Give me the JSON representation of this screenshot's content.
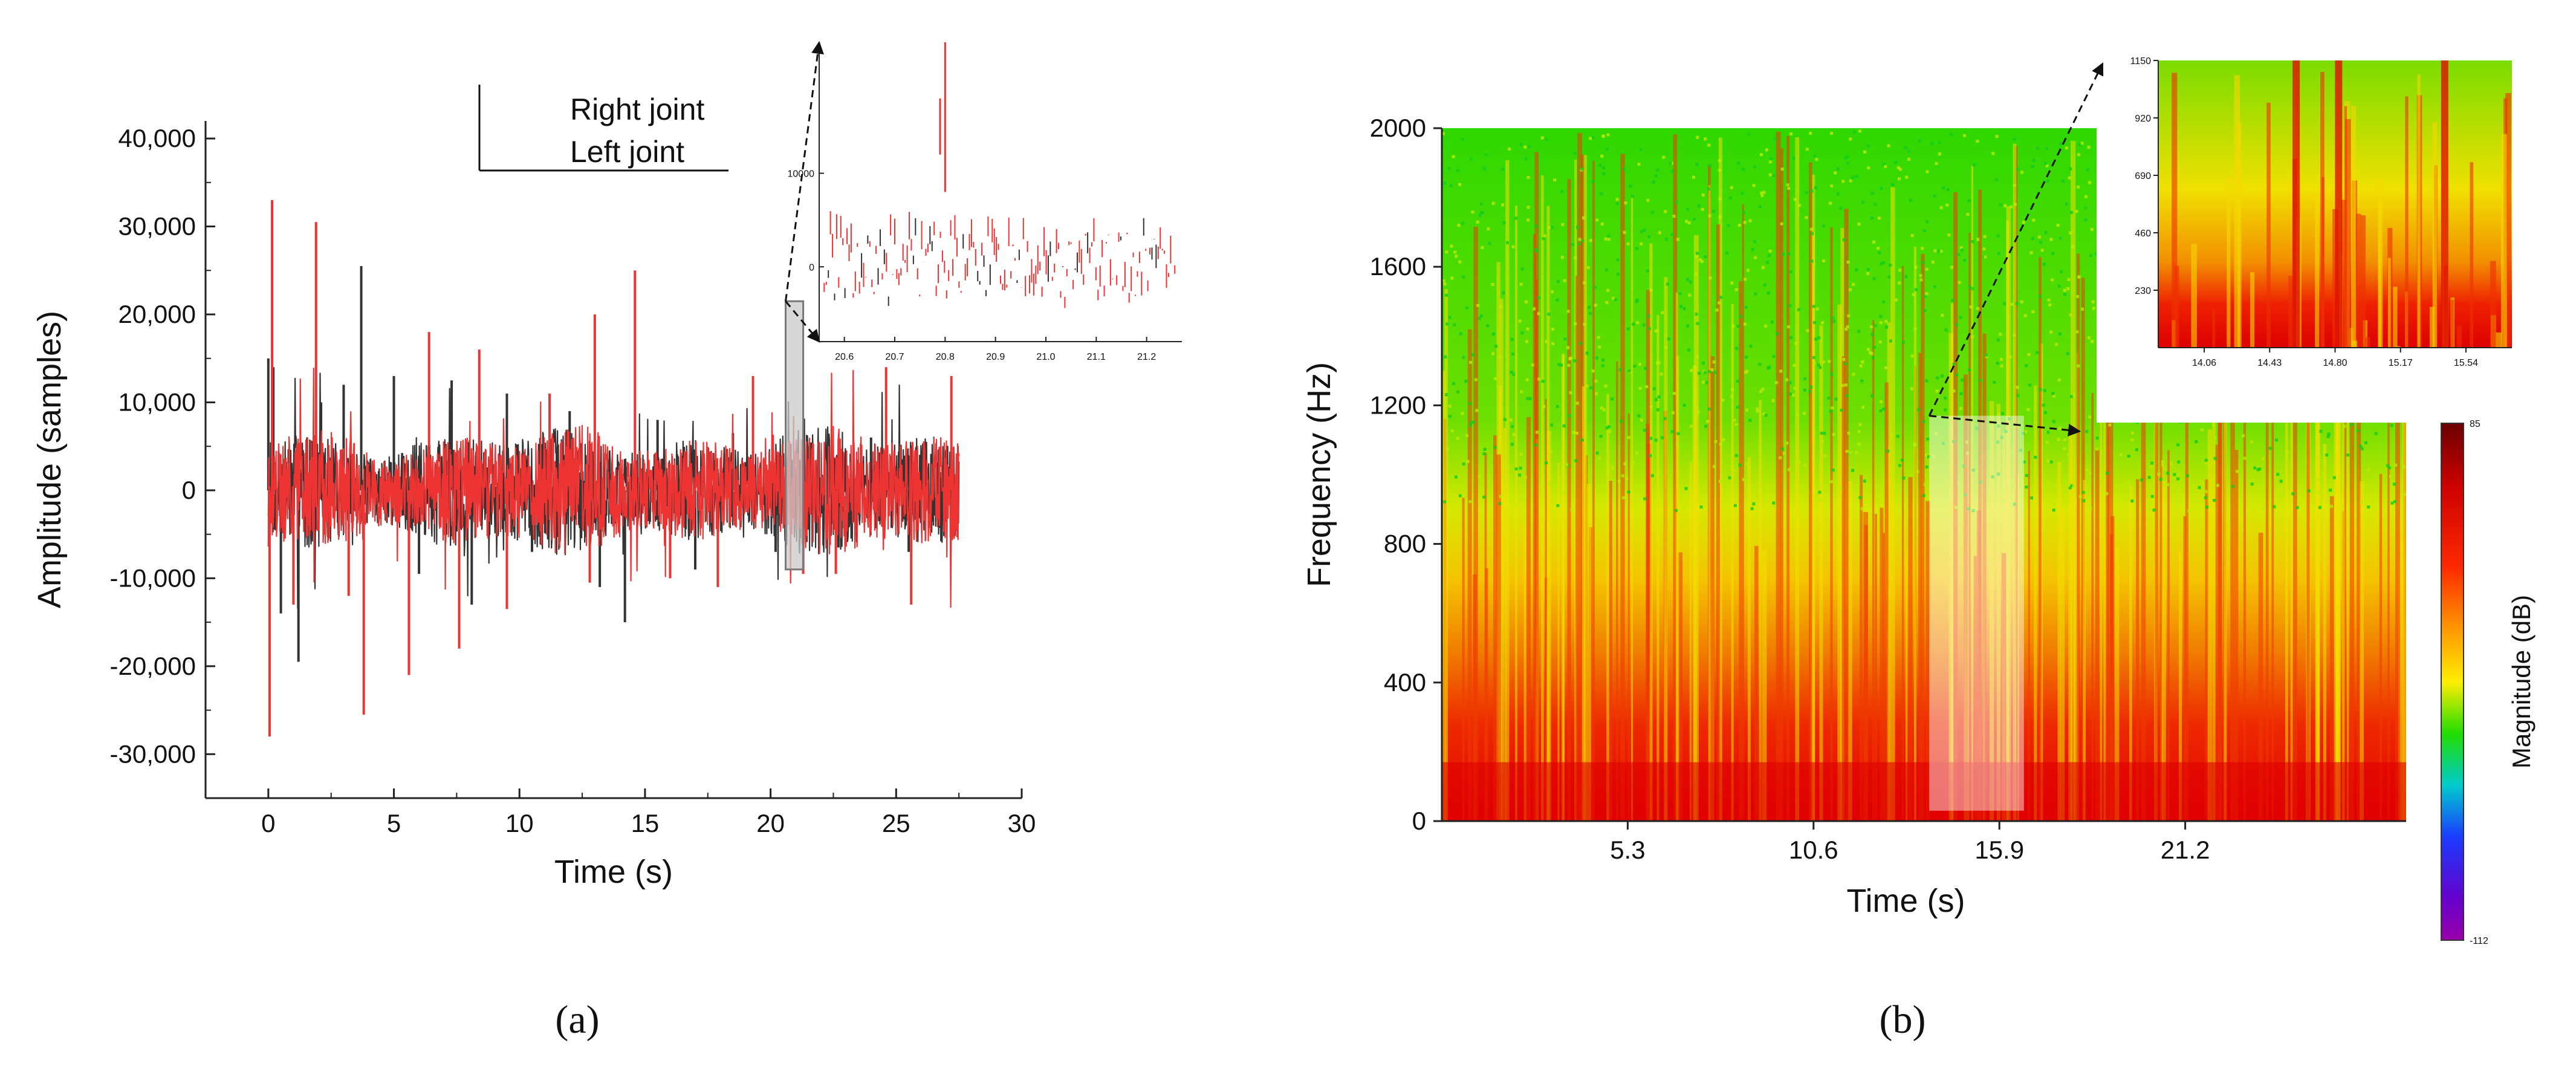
{
  "chart_data": [
    {
      "type": "line",
      "panel": "(a)",
      "xlabel": "Time (s)",
      "ylabel": "Amplitude (samples)",
      "xlim": [
        -2.5,
        30
      ],
      "ylim": [
        -35000,
        42000
      ],
      "xticks": [
        0,
        5,
        10,
        15,
        20,
        25,
        30
      ],
      "xtick_labels": [
        "0",
        "5",
        "10",
        "15",
        "20",
        "25",
        "30"
      ],
      "yticks": [
        -30000,
        -20000,
        -10000,
        0,
        10000,
        20000,
        30000,
        40000
      ],
      "ytick_labels": [
        "-30,000",
        "-20,000",
        "-10,000",
        "0",
        "10,000",
        "20,000",
        "30,000",
        "40,000"
      ],
      "grid": false,
      "legend_position": "top-center",
      "series": [
        {
          "name": "Right joint",
          "color": "#333333",
          "duration_s": 27.5,
          "points": [
            [
              0.0,
              15000
            ],
            [
              0.2,
              14000
            ],
            [
              0.5,
              -14000
            ],
            [
              1.2,
              -19500
            ],
            [
              2.1,
              10000
            ],
            [
              3.0,
              12000
            ],
            [
              3.7,
              25500
            ],
            [
              5.0,
              13000
            ],
            [
              6.0,
              -9500
            ],
            [
              7.3,
              12500
            ],
            [
              8.1,
              -13000
            ],
            [
              9.5,
              11000
            ],
            [
              10.5,
              -7000
            ],
            [
              12.0,
              9000
            ],
            [
              13.2,
              -11000
            ],
            [
              14.2,
              -15000
            ],
            [
              15.5,
              8000
            ],
            [
              17.0,
              -9000
            ],
            [
              18.5,
              6500
            ],
            [
              20.2,
              -7000
            ],
            [
              21.5,
              5000
            ],
            [
              22.7,
              -6500
            ],
            [
              24.0,
              6000
            ],
            [
              25.5,
              -7000
            ],
            [
              27.0,
              4500
            ]
          ]
        },
        {
          "name": "Left joint",
          "color": "#ee3333",
          "duration_s": 27.5,
          "points": [
            [
              0.05,
              -28000
            ],
            [
              0.15,
              33000
            ],
            [
              1.0,
              -13000
            ],
            [
              1.9,
              30500
            ],
            [
              3.2,
              -12000
            ],
            [
              3.8,
              -25500
            ],
            [
              5.6,
              -21000
            ],
            [
              6.4,
              18000
            ],
            [
              7.6,
              -18000
            ],
            [
              8.4,
              16000
            ],
            [
              9.5,
              -13500
            ],
            [
              11.2,
              11000
            ],
            [
              12.8,
              -10500
            ],
            [
              13.0,
              20000
            ],
            [
              14.6,
              25000
            ],
            [
              16.0,
              -10000
            ],
            [
              17.9,
              -11000
            ],
            [
              19.3,
              13000
            ],
            [
              21.3,
              -9500
            ],
            [
              22.6,
              -9500
            ],
            [
              24.6,
              14000
            ],
            [
              25.6,
              -13000
            ],
            [
              27.2,
              13000
            ]
          ]
        }
      ],
      "highlight": {
        "x_from": 20.6,
        "x_to": 21.3,
        "y_from": -9000,
        "y_to": 21500,
        "color": "#c9c9c9"
      },
      "inset": {
        "xlim": [
          20.55,
          21.27
        ],
        "ylim": [
          -8000,
          24000
        ],
        "xticks": [
          20.6,
          20.7,
          20.8,
          20.9,
          21.0,
          21.1,
          21.2
        ],
        "xtick_labels": [
          "20.6",
          "20.7",
          "20.8",
          "20.9",
          "21.0",
          "21.1",
          "21.2"
        ],
        "yticks": [
          0,
          10000
        ],
        "ytick_labels": [
          "0",
          "10000"
        ]
      }
    },
    {
      "type": "heatmap",
      "panel": "(b)",
      "xlabel": "Time (s)",
      "ylabel": "Frequency (Hz)",
      "xlim": [
        0,
        27.5
      ],
      "ylim": [
        0,
        2000
      ],
      "xticks": [
        5.3,
        10.6,
        15.9,
        21.2
      ],
      "xtick_labels": [
        "5.3",
        "10.6",
        "15.9",
        "21.2"
      ],
      "yticks": [
        0,
        400,
        800,
        1200,
        1600,
        2000
      ],
      "ytick_labels": [
        "0",
        "400",
        "800",
        "1200",
        "1600",
        "2000"
      ],
      "colorbar": {
        "label": "Magnitude (dB)",
        "max": 85,
        "min": -112,
        "max_label": "85",
        "min_label": "-112"
      },
      "highlight": {
        "x_from": 13.9,
        "x_to": 16.6,
        "y_from": 30,
        "y_to": 1170
      },
      "inset": {
        "xlim": [
          13.8,
          15.8
        ],
        "ylim": [
          0,
          1150
        ],
        "xticks": [
          14.06,
          14.43,
          14.8,
          15.17,
          15.54
        ],
        "xtick_labels": [
          "14.06",
          "14.43",
          "14.80",
          "15.17",
          "15.54"
        ],
        "yticks": [
          230,
          460,
          690,
          920,
          1150
        ],
        "ytick_labels": [
          "230",
          "460",
          "690",
          "920",
          "1150"
        ]
      }
    }
  ],
  "captions": {
    "a": "(a)",
    "b": "(b)"
  }
}
